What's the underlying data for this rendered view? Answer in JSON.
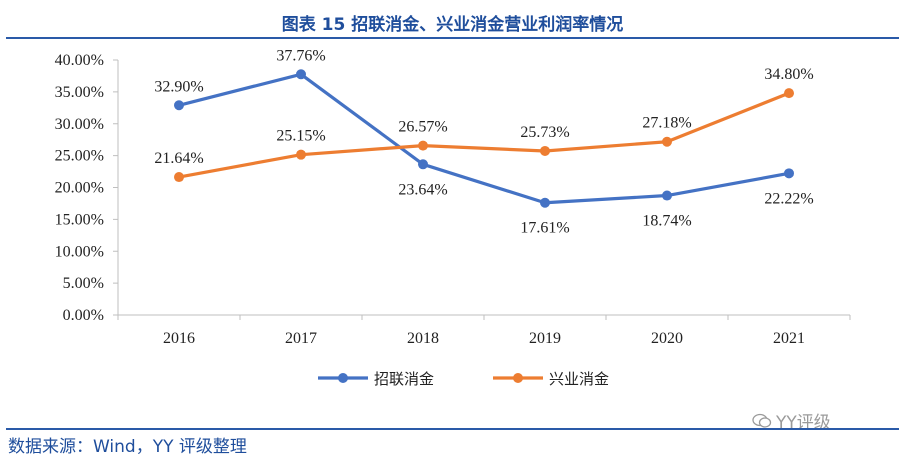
{
  "header": {
    "title": "图表 15 招联消金、兴业消金营业利润率情况"
  },
  "footer": {
    "source": "数据来源：Wind，YY 评级整理",
    "watermark": "YY评级"
  },
  "chart_data": {
    "type": "line",
    "title": "图表 15 招联消金、兴业消金营业利润率情况",
    "categories": [
      "2016",
      "2017",
      "2018",
      "2019",
      "2020",
      "2021"
    ],
    "y_ticks": [
      "0.00%",
      "5.00%",
      "10.00%",
      "15.00%",
      "20.00%",
      "25.00%",
      "30.00%",
      "35.00%",
      "40.00%"
    ],
    "ylim": [
      0,
      40
    ],
    "grid": false,
    "legend": "bottom",
    "series": [
      {
        "name": "招联消金",
        "color": "#4472c4",
        "values": [
          32.9,
          37.76,
          23.64,
          17.61,
          18.74,
          22.22
        ],
        "labels": [
          "32.90%",
          "37.76%",
          "23.64%",
          "17.61%",
          "18.74%",
          "22.22%"
        ]
      },
      {
        "name": "兴业消金",
        "color": "#ed7d31",
        "values": [
          21.64,
          25.15,
          26.57,
          25.73,
          27.18,
          34.8
        ],
        "labels": [
          "21.64%",
          "25.15%",
          "26.57%",
          "25.73%",
          "27.18%",
          "34.80%"
        ]
      }
    ]
  }
}
